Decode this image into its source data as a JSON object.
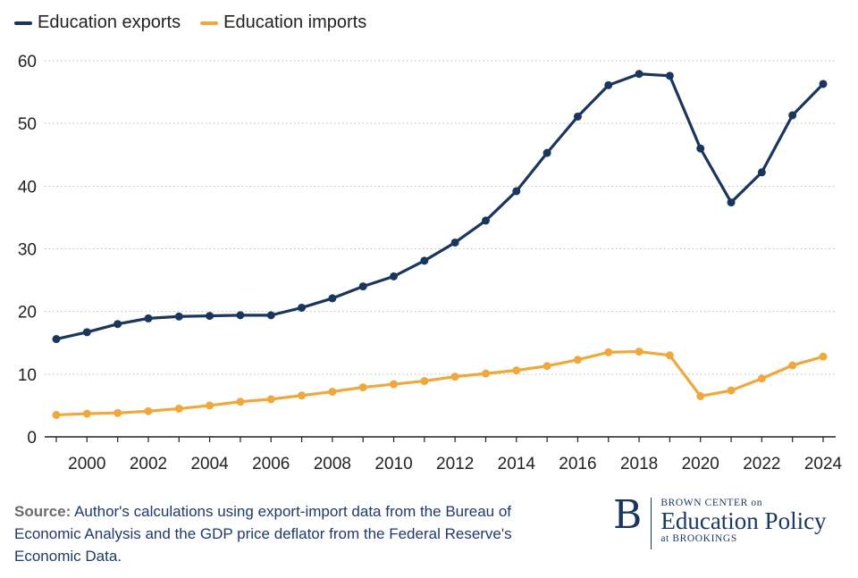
{
  "chart_data": {
    "type": "line",
    "x": [
      1999,
      2000,
      2001,
      2002,
      2003,
      2004,
      2005,
      2006,
      2007,
      2008,
      2009,
      2010,
      2011,
      2012,
      2013,
      2014,
      2015,
      2016,
      2017,
      2018,
      2019,
      2020,
      2021,
      2022,
      2023,
      2024
    ],
    "series": [
      {
        "name": "Education exports",
        "color": "#1a365d",
        "values": [
          15.6,
          16.7,
          18.0,
          18.9,
          19.2,
          19.3,
          19.4,
          19.4,
          20.6,
          22.1,
          24.0,
          25.6,
          28.1,
          31.0,
          34.5,
          39.2,
          45.3,
          51.1,
          56.1,
          57.9,
          57.6,
          46.0,
          37.4,
          42.2,
          51.3,
          56.3
        ]
      },
      {
        "name": "Education imports",
        "color": "#f0a83c",
        "values": [
          3.5,
          3.7,
          3.8,
          4.1,
          4.5,
          5.0,
          5.6,
          6.0,
          6.6,
          7.2,
          7.9,
          8.4,
          8.9,
          9.6,
          10.1,
          10.6,
          11.3,
          12.3,
          13.5,
          13.6,
          13.0,
          6.5,
          7.4,
          9.3,
          11.4,
          12.8
        ]
      }
    ],
    "ylim": [
      0,
      60
    ],
    "y_ticks": [
      "0",
      "10",
      "20",
      "30",
      "40",
      "50",
      "60"
    ],
    "x_ticks": [
      "2000",
      "2002",
      "2004",
      "2006",
      "2008",
      "2010",
      "2012",
      "2014",
      "2016",
      "2018",
      "2020",
      "2022",
      "2024"
    ],
    "title": "",
    "xlabel": "",
    "ylabel": "",
    "grid": "horizontal dotted",
    "legend": "top-left"
  },
  "source": {
    "label": "Source:",
    "text": "Author's calculations using export-import data from the Bureau of Economic Analysis and the GDP price deflator from the Federal Reserve's Economic Data."
  },
  "logo": {
    "letter": "B",
    "top": "BROWN CENTER on",
    "main": "Education Policy",
    "bottom": "at BROOKINGS"
  }
}
